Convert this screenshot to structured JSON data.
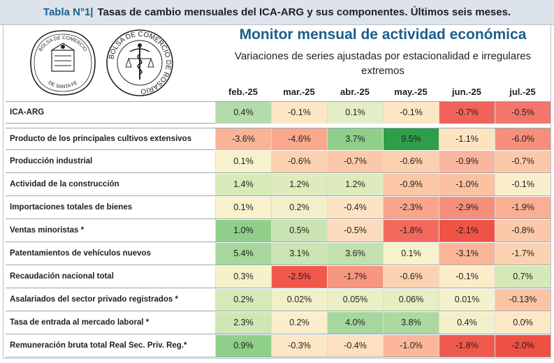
{
  "header": {
    "tag": "Tabla N°1",
    "separator": "|",
    "title": "Tasas de cambio mensuales del ICA-ARG y sus componentes. Últimos seis meses."
  },
  "monitor": {
    "title": "Monitor mensual de actividad económica",
    "subtitle_line1": "Variaciones de series ajustadas por estacionalidad e irregulares",
    "subtitle_line2": "extremos"
  },
  "logos": {
    "left": {
      "top_text": "BOLSA DE COMERCIO",
      "bottom_text": "DE SANTA FE"
    },
    "right": {
      "ring_text": "BOLSA DE COMERCIO DE ROSARIO"
    }
  },
  "table": {
    "columns": [
      "feb.-25",
      "mar.-25",
      "abr.-25",
      "may.-25",
      "jun.-25",
      "jul.-25"
    ],
    "rows": [
      {
        "label": "ICA-ARG",
        "values": [
          "0.4%",
          "-0.1%",
          "0.1%",
          "-0.1%",
          "-0.7%",
          "-0.5%"
        ],
        "colors": [
          "#b3dcaa",
          "#fde6c4",
          "#e3eec7",
          "#fde6c4",
          "#f0635a",
          "#f3766c"
        ]
      },
      {
        "label": "Producto de los principales cultivos extensivos",
        "values": [
          "-3.6%",
          "-4.6%",
          "3.7%",
          "9.5%",
          "-1.1%",
          "-6.0%"
        ],
        "colors": [
          "#f9b496",
          "#f9a88c",
          "#8fcf8a",
          "#2f9e4a",
          "#fde3bf",
          "#f58f7c"
        ]
      },
      {
        "label": "Producción industrial",
        "values": [
          "0.1%",
          "-0.6%",
          "-0.7%",
          "-0.6%",
          "-0.9%",
          "-0.7%"
        ],
        "colors": [
          "#f7f1cc",
          "#fbd1b0",
          "#fbc9a9",
          "#fbd1b0",
          "#f9b59d",
          "#fbc9a9"
        ]
      },
      {
        "label": "Actividad de la construcción",
        "values": [
          "1.4%",
          "1.2%",
          "1.2%",
          "-0.9%",
          "-1.0%",
          "-0.1%"
        ],
        "colors": [
          "#d8eab8",
          "#deecbd",
          "#deecbd",
          "#fbc7a6",
          "#fbc2a2",
          "#fbeecc"
        ]
      },
      {
        "label": "Importaciones totales de bienes",
        "values": [
          "0.1%",
          "0.2%",
          "-0.4%",
          "-2.3%",
          "-2.9%",
          "-1.9%"
        ],
        "colors": [
          "#f7f1cc",
          "#f2f0c8",
          "#fce3c2",
          "#f9a58e",
          "#f58f7c",
          "#faae94"
        ]
      },
      {
        "label": "Ventas minoristas *",
        "values": [
          "1.0%",
          "0.5%",
          "-0.5%",
          "-1.8%",
          "-2.1%",
          "-0.8%"
        ],
        "colors": [
          "#8fcf8a",
          "#c9e4b2",
          "#fcdcbc",
          "#f26a5c",
          "#ee5346",
          "#fbc9a9"
        ]
      },
      {
        "label": "Patentamientos de vehículos nuevos",
        "values": [
          "5.4%",
          "3.1%",
          "3.6%",
          "0.1%",
          "-3.1%",
          "-1.7%"
        ],
        "colors": [
          "#a6d79c",
          "#cbe5b3",
          "#c2e1ad",
          "#f7f1cc",
          "#fbb597",
          "#fcd2b1"
        ]
      },
      {
        "label": "Recaudación nacional total",
        "values": [
          "0.3%",
          "-2.5%",
          "-1.7%",
          "-0.6%",
          "-0.1%",
          "0.7%"
        ],
        "colors": [
          "#f6f1ca",
          "#f0584b",
          "#f6967f",
          "#fcd3b2",
          "#fbecca",
          "#d4e9b7"
        ]
      },
      {
        "label": "Asalariados del sector privado registrados *",
        "values": [
          "0.2%",
          "0.02%",
          "0.05%",
          "0.06%",
          "0.01%",
          "-0.13%"
        ],
        "colors": [
          "#d5eab8",
          "#f2f0c8",
          "#eaefc5",
          "#e6eec3",
          "#f5f1ca",
          "#fbc4a4"
        ]
      },
      {
        "label": "Tasa de entrada al mercado laboral *",
        "values": [
          "2.3%",
          "0.2%",
          "4.0%",
          "3.8%",
          "0.4%",
          "0.0%"
        ],
        "colors": [
          "#cfe7b5",
          "#fbeecc",
          "#a6d79c",
          "#acd99f",
          "#f3f0c9",
          "#fce8c6"
        ]
      },
      {
        "label": "Remuneración bruta total Real Sec. Priv. Reg.*",
        "values": [
          "0.9%",
          "-0.3%",
          "-0.4%",
          "-1.0%",
          "-1.8%",
          "-2.0%"
        ],
        "colors": [
          "#8fcf8a",
          "#fbe6c6",
          "#fce0bf",
          "#fab79b",
          "#ef5a4d",
          "#ee5044"
        ]
      }
    ]
  }
}
